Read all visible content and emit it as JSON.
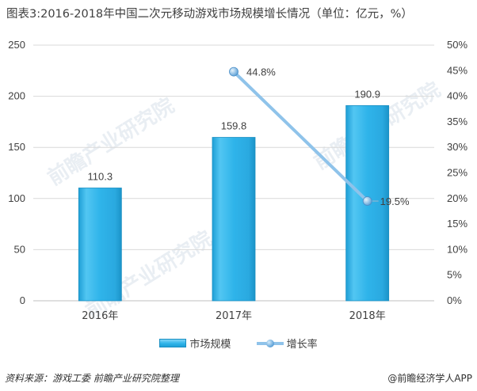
{
  "title": "图表3:2016-2018年中国二次元移动游戏市场规模增长情况（单位：亿元，%）",
  "watermark": "前瞻产业研究院",
  "source": "资料来源：游戏工委  前瞻产业研究院整理",
  "brand": "@前瞻经济学人APP",
  "colors": {
    "bar": "#2fb4ea",
    "line": "#8fc3ea",
    "axis": "#d9d9d9",
    "grid": "#d9d9d9"
  },
  "chart_data": {
    "type": "bar",
    "categories": [
      "2016年",
      "2017年",
      "2018年"
    ],
    "series": [
      {
        "name": "市场规模",
        "type": "bar",
        "axis": "left",
        "values": [
          110.3,
          159.8,
          190.9
        ],
        "labels": [
          "110.3",
          "159.8",
          "190.9"
        ]
      },
      {
        "name": "增长率",
        "type": "line",
        "axis": "right",
        "values": [
          null,
          44.8,
          19.5
        ],
        "labels": [
          "",
          "44.8%",
          "19.5%"
        ]
      }
    ],
    "y_left": {
      "min": 0,
      "max": 250,
      "ticks": [
        "0",
        "50",
        "100",
        "150",
        "200",
        "250"
      ]
    },
    "y_right": {
      "min": 0,
      "max": 50,
      "ticks": [
        "0%",
        "5%",
        "10%",
        "15%",
        "20%",
        "25%",
        "30%",
        "35%",
        "40%",
        "45%",
        "50%"
      ]
    },
    "grid": true,
    "legend": "bottom"
  }
}
